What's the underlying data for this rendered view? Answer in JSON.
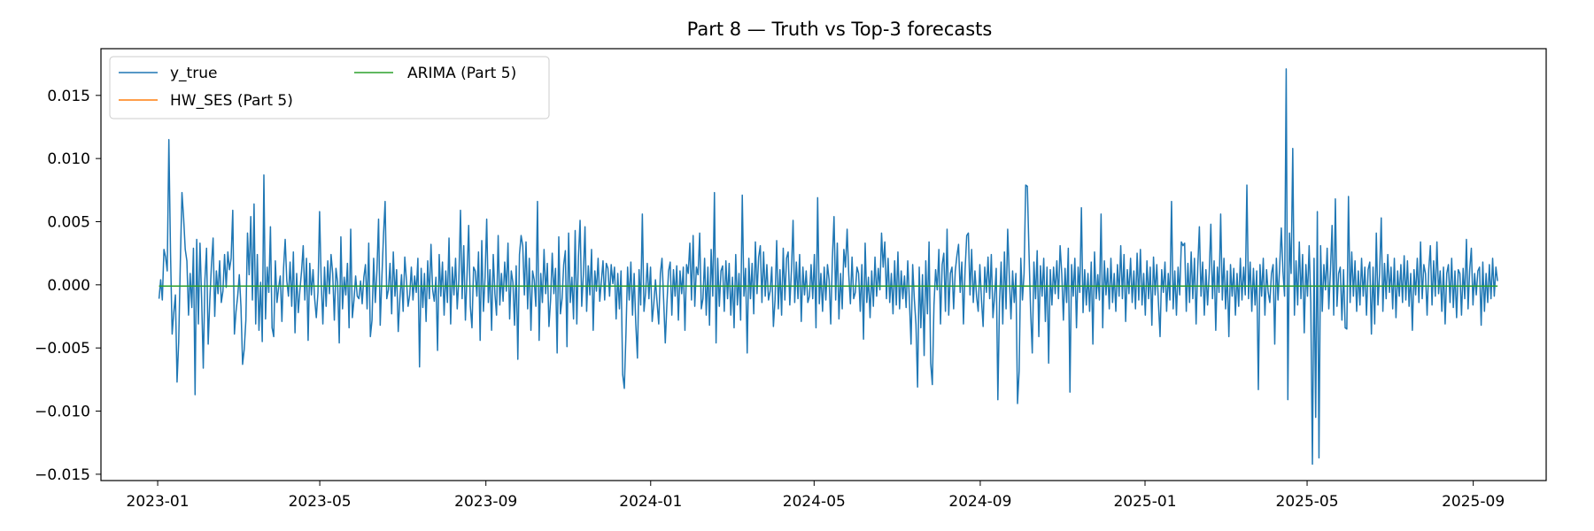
{
  "chart_data": {
    "type": "line",
    "title": "Part 8 — Truth vs Top-3 forecasts",
    "xlabel": "",
    "ylabel": "",
    "xlim": [
      "2022-11-20",
      "2025-10-25"
    ],
    "ylim": [
      -0.0155,
      0.0187
    ],
    "x_ticks": [
      "2023-01",
      "2023-05",
      "2023-09",
      "2024-01",
      "2024-05",
      "2024-09",
      "2025-01",
      "2025-05",
      "2025-09"
    ],
    "y_ticks": [
      "0.015",
      "0.010",
      "0.005",
      "0.000",
      "−0.005",
      "−0.010",
      "−0.015"
    ],
    "y_tick_values": [
      0.015,
      0.01,
      0.005,
      0.0,
      -0.005,
      -0.01,
      -0.015
    ],
    "grid": false,
    "legend_placement": "top-left",
    "x_range": [
      "2023-01-02",
      "2025-09-19"
    ],
    "series": [
      {
        "name": "y_true",
        "color": "#1f77b4",
        "y": [
          -0.0011,
          0.0004,
          -0.0012,
          0.0028,
          0.0022,
          0.0011,
          0.0115,
          0.0026,
          -0.0039,
          -0.0022,
          -0.0008,
          -0.0077,
          -0.0045,
          0.0018,
          0.0073,
          0.0053,
          0.0028,
          0.0019,
          -0.0024,
          0.0009,
          -0.0018,
          0.0029,
          -0.0087,
          0.0036,
          -0.0031,
          0.0033,
          -0.0011,
          -0.0066,
          0.0004,
          0.0029,
          -0.0047,
          -0.0012,
          0.0016,
          0.0037,
          -0.0025,
          0.0011,
          -0.0007,
          0.0019,
          -0.0014,
          -0.0005,
          0.0024,
          -0.0002,
          0.0026,
          0.0012,
          0.0021,
          0.0059,
          -0.0039,
          -0.0021,
          -0.0009,
          0.0008,
          -0.0017,
          -0.0063,
          -0.0051,
          -0.0028,
          0.0041,
          0.0008,
          0.0054,
          -0.0012,
          0.0064,
          -0.0031,
          0.0024,
          -0.0036,
          0.0002,
          -0.0045,
          0.0087,
          -0.0027,
          0.0014,
          -0.0006,
          0.0046,
          -0.0034,
          -0.0041,
          0.0019,
          -0.0014,
          -0.0002,
          0.0007,
          -0.0029,
          0.0013,
          0.0036,
          0.0003,
          -0.0009,
          0.0018,
          -0.0017,
          0.0026,
          -0.0038,
          0.0009,
          -0.0022,
          -0.0004,
          0.0011,
          0.0031,
          -0.0012,
          0.0021,
          -0.0044,
          0.0017,
          -0.0008,
          0.0012,
          -0.0011,
          -0.0026,
          -0.0006,
          0.0058,
          0.0002,
          -0.0031,
          0.0014,
          -0.0017,
          0.0019,
          -0.0007,
          0.0024,
          0.0009,
          -0.0028,
          0.0013,
          0.0002,
          -0.0046,
          0.0038,
          -0.0019,
          0.0006,
          -0.0008,
          0.0017,
          -0.0034,
          0.0044,
          -0.0026,
          -0.0012,
          0.0007,
          -0.0009,
          -0.0011,
          0.0003,
          -0.0015,
          0.0006,
          0.0016,
          -0.0019,
          0.0033,
          -0.0041,
          -0.0028,
          0.0021,
          -0.0014,
          0.0011,
          0.0052,
          -0.0032,
          0.0005,
          0.0039,
          0.0066,
          -0.0011,
          -0.0004,
          0.0017,
          -0.0023,
          0.0026,
          -0.0009,
          0.0012,
          -0.0037,
          -0.0011,
          0.0008,
          -0.0021,
          0.0022,
          0.0004,
          -0.0017,
          -0.0008,
          0.0014,
          -0.0012,
          0.0007,
          -0.0006,
          0.0021,
          -0.0065,
          0.0013,
          -0.0018,
          0.0009,
          -0.0029,
          0.0019,
          -0.0011,
          0.0032,
          -0.0004,
          -0.0013,
          0.0006,
          -0.0052,
          0.0024,
          -0.0009,
          0.0018,
          -0.0024,
          0.0011,
          -0.0014,
          0.0037,
          -0.0031,
          0.0014,
          -0.0008,
          0.0021,
          -0.0019,
          0.0004,
          0.0059,
          -0.0011,
          0.0031,
          -0.0028,
          0.0008,
          0.0047,
          -0.0017,
          -0.0034,
          0.0014,
          0.0011,
          -0.0009,
          0.0026,
          -0.0044,
          0.0035,
          -0.0021,
          0.0006,
          0.0052,
          -0.0014,
          0.0012,
          -0.0036,
          0.0024,
          -0.0007,
          -0.0024,
          0.0039,
          -0.0016,
          0.0009,
          -0.0013,
          0.0018,
          -0.0005,
          0.0033,
          -0.0027,
          0.0011,
          0.0002,
          -0.0032,
          0.0015,
          -0.0059,
          0.0024,
          0.0039,
          0.0031,
          -0.0008,
          0.0034,
          -0.0019,
          0.0021,
          -0.0036,
          0.0011,
          0.0004,
          -0.0017,
          0.0066,
          -0.0044,
          0.0009,
          -0.0014,
          0.0028,
          -0.0007,
          0.0017,
          -0.0033,
          -0.0012,
          0.0025,
          -0.0007,
          0.0013,
          -0.0054,
          0.0038,
          -0.0023,
          -0.0011,
          0.0016,
          0.0027,
          -0.0049,
          0.0041,
          -0.0014,
          0.0006,
          -0.0027,
          0.0043,
          -0.0031,
          0.0022,
          0.0051,
          -0.0017,
          0.0008,
          0.0046,
          -0.0021,
          0.0015,
          -0.0008,
          0.0028,
          -0.0036,
          0.0011,
          -0.0005,
          0.0021,
          -0.0013,
          0.0003,
          0.0019,
          -0.0012,
          0.0017,
          0.0013,
          -0.0009,
          0.0016,
          0.0001,
          0.0014,
          -0.0027,
          0.0009,
          -0.0019,
          0.0011,
          -0.0071,
          -0.0082,
          -0.0039,
          0.0014,
          -0.0012,
          0.0018,
          -0.0024,
          0.0009,
          -0.0031,
          -0.0058,
          0.0012,
          -0.0016,
          0.0056,
          -0.0021,
          -0.0006,
          0.0017,
          -0.0011,
          0.0014,
          -0.0029,
          -0.0015,
          0.0004,
          -0.0014,
          -0.0031,
          0.0009,
          0.0021,
          -0.0012,
          -0.0046,
          -0.0015,
          0.0011,
          0.0018,
          -0.0024,
          0.0012,
          -0.0009,
          0.0015,
          -0.0028,
          0.0011,
          -0.0007,
          0.0014,
          -0.0036,
          0.0016,
          0.0009,
          0.0033,
          -0.0012,
          0.0039,
          -0.0017,
          0.0014,
          0.0008,
          0.0041,
          -0.0019,
          -0.0011,
          0.0021,
          -0.0024,
          0.0014,
          -0.0032,
          0.0028,
          -0.0009,
          0.0073,
          -0.0046,
          0.0021,
          -0.0017,
          0.0011,
          0.0015,
          -0.0021,
          0.0019,
          -0.0011,
          0.0017,
          -0.0024,
          0.0006,
          -0.0034,
          0.0024,
          -0.0016,
          0.0009,
          -0.0028,
          0.0071,
          -0.0009,
          0.0013,
          -0.0054,
          0.0021,
          -0.0011,
          0.0017,
          -0.0023,
          0.0034,
          -0.0007,
          0.0022,
          0.0031,
          -0.0014,
          0.0026,
          -0.0009,
          0.0016,
          -0.0012,
          -0.0005,
          0.0014,
          -0.0033,
          -0.0012,
          0.0035,
          -0.0019,
          0.0012,
          -0.0024,
          0.0029,
          -0.0012,
          0.0021,
          0.0026,
          -0.0016,
          0.0011,
          0.0051,
          -0.0014,
          0.0018,
          -0.0011,
          0.0024,
          -0.0029,
          0.0014,
          -0.0008,
          0.0011,
          -0.0014,
          -0.0009,
          0.0016,
          -0.0011,
          0.0024,
          -0.0034,
          0.0069,
          -0.0015,
          0.0009,
          -0.0021,
          0.0014,
          -0.0012,
          0.0016,
          0.0004,
          -0.0031,
          0.0021,
          0.0054,
          -0.0012,
          0.0033,
          -0.0027,
          0.0009,
          -0.0019,
          0.0028,
          0.0014,
          0.0044,
          0.0008,
          -0.0015,
          0.0022,
          -0.0011,
          -0.0006,
          0.0014,
          0.0009,
          -0.0021,
          0.0016,
          -0.0043,
          0.0033,
          -0.0014,
          0.0006,
          -0.0026,
          0.0011,
          -0.0017,
          0.0022,
          -0.0009,
          0.0013,
          -0.0004,
          0.0041,
          0.0014,
          0.0034,
          -0.0011,
          0.0021,
          -0.0014,
          0.0009,
          -0.0023,
          0.0019,
          -0.0016,
          0.0026,
          -0.0019,
          0.0011,
          -0.0011,
          0.0007,
          -0.0018,
          0.0019,
          -0.0012,
          -0.0047,
          0.0016,
          -0.0011,
          -0.0031,
          -0.0081,
          0.0014,
          -0.0034,
          0.0008,
          -0.0056,
          0.0019,
          -0.0023,
          0.0034,
          -0.0062,
          -0.0079,
          -0.0016,
          0.0012,
          -0.0004,
          0.0028,
          -0.0031,
          0.0016,
          0.0025,
          -0.0021,
          0.0044,
          -0.0024,
          0.0009,
          0.0014,
          -0.0019,
          0.0011,
          0.0023,
          0.0032,
          -0.0006,
          0.0018,
          -0.0031,
          0.0012,
          0.0039,
          0.0041,
          -0.0008,
          0.0028,
          -0.0014,
          0.0011,
          -0.0009,
          -0.0021,
          0.0016,
          -0.0012,
          -0.0033,
          0.0014,
          -0.0006,
          0.0022,
          -0.0011,
          0.0024,
          -0.0026,
          -0.0009,
          0.0013,
          -0.0091,
          -0.0014,
          0.0018,
          -0.0031,
          0.0026,
          -0.0019,
          0.0044,
          0.0006,
          -0.0027,
          0.0011,
          -0.0014,
          0.0009,
          -0.0094,
          -0.0068,
          0.0021,
          -0.0012,
          0.0009,
          0.0079,
          0.0078,
          0.0026,
          -0.0021,
          -0.0054,
          0.0018,
          -0.0011,
          0.0027,
          -0.0041,
          0.0015,
          -0.0009,
          0.0021,
          -0.0029,
          0.0014,
          -0.0062,
          0.0012,
          -0.0016,
          0.0014,
          -0.0007,
          0.0019,
          -0.0011,
          0.0031,
          0.0009,
          -0.0028,
          0.0013,
          -0.0014,
          0.0029,
          -0.0085,
          0.0016,
          -0.0009,
          0.0021,
          -0.0034,
          0.0014,
          -0.0006,
          0.0061,
          -0.0022,
          0.0012,
          -0.0016,
          0.0009,
          -0.0021,
          0.0018,
          -0.0047,
          0.0026,
          -0.0011,
          0.0008,
          -0.0012,
          0.0056,
          -0.0034,
          0.0019,
          -0.0008,
          0.0013,
          -0.0019,
          0.0021,
          -0.0014,
          0.0009,
          -0.0021,
          0.0016,
          -0.0009,
          0.0031,
          -0.0011,
          0.0024,
          -0.0029,
          0.0012,
          -0.0007,
          0.0021,
          -0.0014,
          0.0011,
          -0.0019,
          0.0025,
          -0.0012,
          0.0028,
          -0.0016,
          0.0009,
          -0.0024,
          0.0019,
          -0.0011,
          0.0014,
          -0.0032,
          0.0022,
          -0.0008,
          0.0016,
          -0.0014,
          -0.0041,
          0.0012,
          -0.0006,
          0.0018,
          -0.0021,
          0.0009,
          -0.0012,
          0.0066,
          -0.0019,
          0.0011,
          -0.0024,
          0.0014,
          -0.0008,
          0.0034,
          0.0031,
          0.0033,
          -0.0021,
          0.0017,
          -0.0014,
          0.0026,
          -0.0011,
          0.0021,
          -0.0031,
          0.0014,
          0.0046,
          -0.0009,
          0.0018,
          -0.0024,
          0.0012,
          -0.0016,
          0.0009,
          0.0048,
          -0.0011,
          0.0019,
          -0.0036,
          0.0014,
          -0.0006,
          0.0056,
          -0.0012,
          0.0021,
          -0.0019,
          0.0011,
          -0.0041,
          0.0016,
          -0.0009,
          0.0013,
          -0.0024,
          0.0009,
          -0.0017,
          0.0021,
          -0.0012,
          0.0014,
          -0.0008,
          0.0079,
          -0.0011,
          0.0018,
          -0.0021,
          0.0013,
          -0.0016,
          0.0011,
          -0.0083,
          0.0016,
          -0.0009,
          0.0021,
          -0.0024,
          0.0012,
          -0.0006,
          -0.0014,
          0.0009,
          0.0016,
          -0.0047,
          0.0021,
          -0.0012,
          0.0014,
          0.0045,
          0.0011,
          -0.0009,
          0.0171,
          -0.0091,
          0.0041,
          0.0009,
          0.0108,
          -0.0024,
          0.0019,
          -0.0016,
          0.0034,
          -0.0011,
          0.0024,
          -0.0038,
          0.0016,
          -0.0009,
          0.0031,
          -0.0014,
          -0.0142,
          0.0021,
          -0.0105,
          0.0058,
          -0.0137,
          0.0031,
          -0.0021,
          0.0016,
          -0.0004,
          0.0029,
          -0.0019,
          0.0011,
          0.0047,
          -0.0024,
          0.0068,
          -0.0017,
          0.0009,
          0.0014,
          -0.0028,
          0.0012,
          -0.0034,
          -0.0035,
          0.007,
          -0.0014,
          0.0026,
          -0.0009,
          0.0019,
          -0.0021,
          0.0011,
          -0.0016,
          0.0021,
          -0.0009,
          0.0014,
          -0.0024,
          0.0012,
          0.0018,
          -0.0039,
          0.0014,
          -0.0031,
          0.0041,
          -0.0016,
          0.0009,
          0.0053,
          -0.0021,
          0.0017,
          -0.0011,
          0.0024,
          -0.0006,
          0.0014,
          -0.0019,
          0.0021,
          -0.0026,
          0.0011,
          -0.0009,
          0.0016,
          -0.0014,
          0.0023,
          -0.0012,
          0.0019,
          -0.0017,
          0.0009,
          -0.0036,
          0.0012,
          -0.0008,
          0.0021,
          -0.0014,
          0.0034,
          -0.0011,
          0.0016,
          0.0009,
          -0.0024,
          0.0012,
          0.0031,
          -0.0016,
          0.0019,
          -0.0009,
          0.0034,
          -0.0007,
          0.0011,
          -0.0021,
          0.0014,
          -0.0031,
          0.0009,
          0.0016,
          -0.0014,
          0.0021,
          -0.0018,
          0.0011,
          -0.0026,
          0.0012,
          0.0009,
          -0.0024,
          0.0013,
          -0.0011,
          0.0036,
          -0.0019,
          0.0012,
          0.0029,
          -0.0016,
          0.0009,
          -0.0008,
          0.0011,
          0.0014,
          -0.0032,
          0.0018,
          -0.0021,
          0.0009,
          -0.0014,
          0.0016,
          -0.0011,
          0.0021,
          -0.0009,
          0.0014,
          0.0003
        ]
      },
      {
        "name": "HW_SES (Part 5)",
        "color": "#ff7f0e",
        "constant": -0.0001
      },
      {
        "name": "ARIMA (Part 5)",
        "color": "#2ca02c",
        "constant": -0.0001
      }
    ]
  }
}
